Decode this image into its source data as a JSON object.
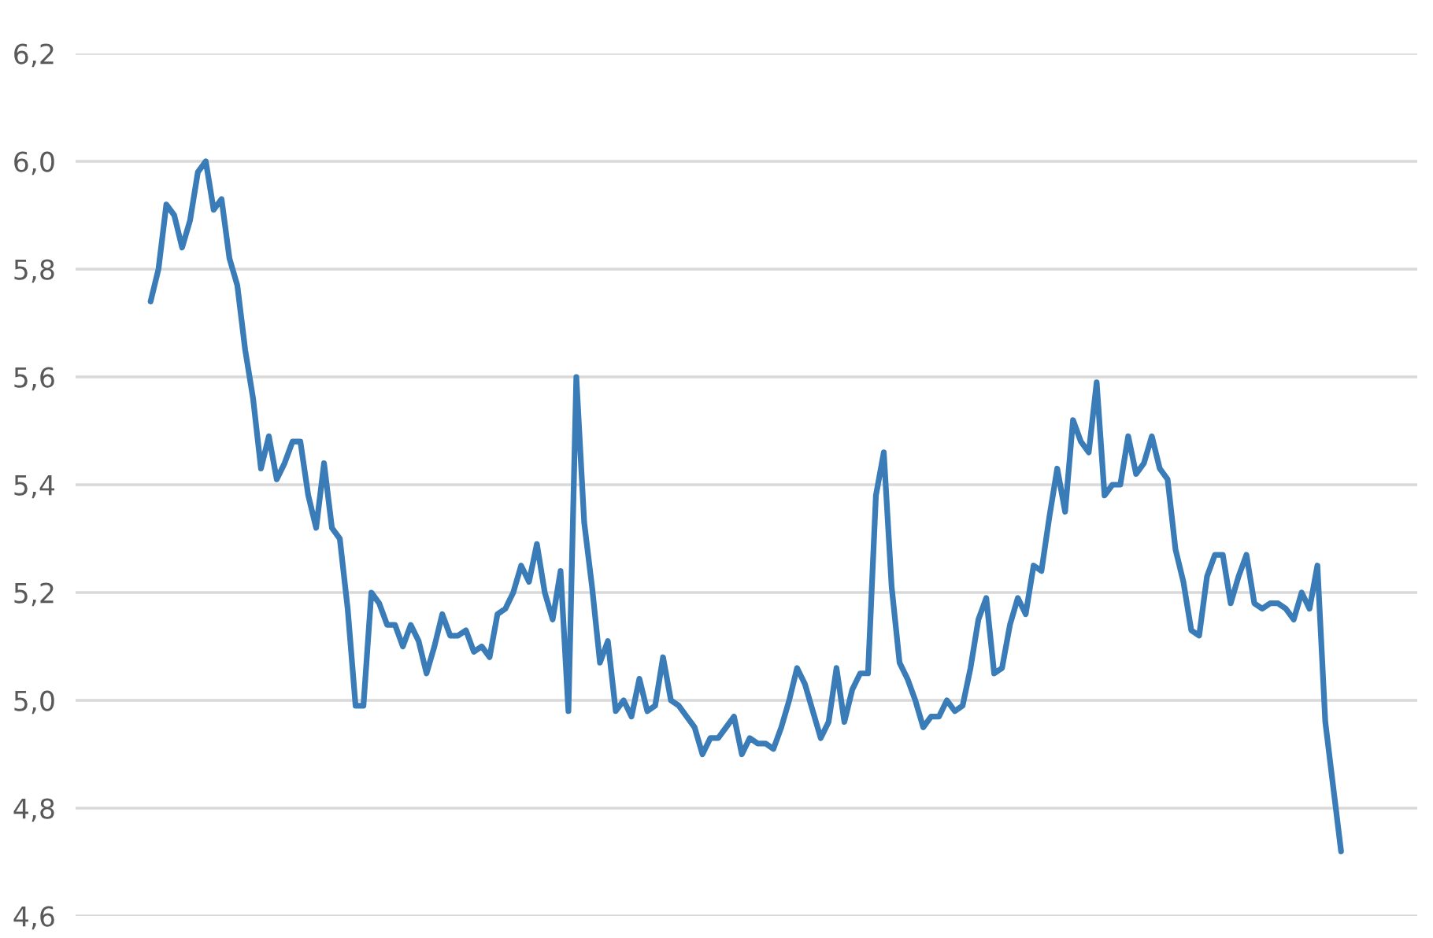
{
  "chart_data": {
    "type": "line",
    "categories": [
      null,
      null,
      null,
      null,
      null,
      null,
      null,
      null,
      null,
      null,
      null,
      null,
      null,
      null,
      null,
      null,
      null,
      null,
      null,
      null,
      null,
      null,
      null,
      null,
      null,
      null,
      null,
      null,
      null,
      null,
      null,
      null,
      null,
      null,
      null,
      null,
      null,
      null,
      null,
      null,
      null,
      null,
      null,
      null,
      null,
      null,
      null,
      null,
      null,
      null,
      null,
      null,
      null,
      null,
      null,
      null,
      null,
      null,
      null,
      null,
      null,
      null,
      null,
      null,
      null,
      null,
      null,
      null,
      null,
      null,
      null,
      null,
      null,
      null,
      null,
      null,
      null,
      null,
      null,
      null,
      null,
      null,
      null,
      null,
      null,
      null,
      null,
      null,
      null,
      null,
      null,
      null,
      null,
      null,
      null,
      null,
      null,
      null,
      null,
      null,
      null,
      null,
      null,
      null,
      null,
      null,
      null,
      null,
      null,
      null,
      null,
      null,
      null,
      null,
      null,
      null,
      null,
      null,
      null,
      null,
      null,
      null,
      null,
      null,
      null,
      null,
      null,
      null,
      null,
      null,
      null,
      null,
      null,
      null,
      null,
      null,
      null,
      null,
      null,
      null,
      null,
      null,
      null,
      null,
      null,
      null,
      null,
      null,
      null,
      null,
      null,
      null
    ],
    "series": [
      {
        "color": "#3a7cb8",
        "values": [
          5.74,
          5.8,
          5.92,
          5.9,
          5.84,
          5.89,
          5.98,
          6.0,
          5.91,
          5.93,
          5.82,
          5.77,
          5.65,
          5.56,
          5.43,
          5.49,
          5.41,
          5.44,
          5.48,
          5.48,
          5.38,
          5.32,
          5.44,
          5.32,
          5.3,
          5.17,
          4.99,
          4.99,
          5.2,
          5.18,
          5.14,
          5.14,
          5.1,
          5.14,
          5.11,
          5.05,
          5.1,
          5.16,
          5.12,
          5.12,
          5.13,
          5.09,
          5.1,
          5.08,
          5.16,
          5.17,
          5.2,
          5.25,
          5.22,
          5.29,
          5.2,
          5.15,
          5.24,
          4.98,
          5.6,
          5.33,
          5.21,
          5.07,
          5.11,
          4.98,
          5.0,
          4.97,
          5.04,
          4.98,
          4.99,
          5.08,
          5.0,
          4.99,
          4.97,
          4.95,
          4.9,
          4.93,
          4.93,
          4.95,
          4.97,
          4.9,
          4.93,
          4.92,
          4.92,
          4.91,
          4.95,
          5.0,
          5.06,
          5.03,
          4.98,
          4.93,
          4.96,
          5.06,
          4.96,
          5.02,
          5.05,
          5.05,
          5.38,
          5.46,
          5.21,
          5.07,
          5.04,
          5.0,
          4.95,
          4.97,
          4.97,
          5.0,
          4.98,
          4.99,
          5.06,
          5.15,
          5.19,
          5.05,
          5.06,
          5.14,
          5.19,
          5.16,
          5.25,
          5.24,
          5.34,
          5.43,
          5.35,
          5.52,
          5.48,
          5.46,
          5.59,
          5.38,
          5.4,
          5.4,
          5.49,
          5.42,
          5.44,
          5.49,
          5.43,
          5.41,
          5.28,
          5.22,
          5.13,
          5.12,
          5.23,
          5.27,
          5.27,
          5.18,
          5.23,
          5.27,
          5.18,
          5.17,
          5.18,
          5.18,
          5.17,
          5.15,
          5.2,
          5.17,
          5.25,
          4.96,
          4.84,
          4.72
        ]
      }
    ],
    "ylim": [
      4.6,
      6.2
    ],
    "yticks": [
      {
        "value": 4.6,
        "label": "4,6"
      },
      {
        "value": 4.8,
        "label": "4,8"
      },
      {
        "value": 5.0,
        "label": "5,0"
      },
      {
        "value": 5.2,
        "label": "5,2"
      },
      {
        "value": 5.4,
        "label": "5,4"
      },
      {
        "value": 5.6,
        "label": "5,6"
      },
      {
        "value": 5.8,
        "label": "5,8"
      },
      {
        "value": 6.0,
        "label": "6,0"
      },
      {
        "value": 6.2,
        "label": "6,2"
      }
    ],
    "grid": "y",
    "tick_labels": "y",
    "line_style": "solid"
  }
}
